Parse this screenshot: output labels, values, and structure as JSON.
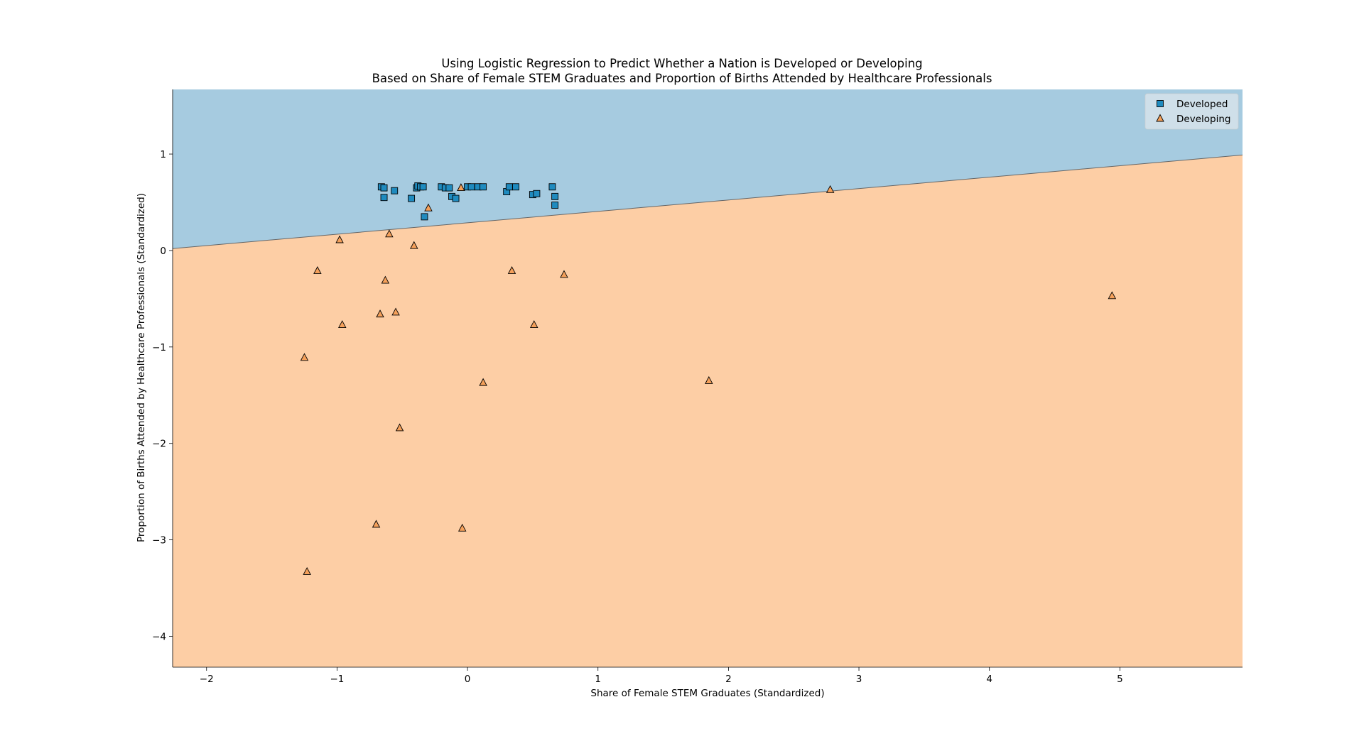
{
  "chart_data": {
    "type": "scatter",
    "title": "Using Logistic Regression to Predict Whether a Nation is Developed or Developing",
    "subtitle": "Based on Share of Female STEM Graduates and Proportion of Births Attended by Healthcare Professionals",
    "xlabel": "Share of Female STEM Graduates (Standardized)",
    "ylabel": "Proportion of Births Attended by Healthcare Professionals (Standardized)",
    "xlim": [
      -2.26,
      5.94
    ],
    "ylim": [
      -4.32,
      1.67
    ],
    "xticks": [
      -2,
      -1,
      0,
      1,
      2,
      3,
      4,
      5
    ],
    "yticks": [
      1,
      0,
      -1,
      -2,
      -3,
      -4
    ],
    "grid": false,
    "legend_position": "upper right",
    "decision_boundary": {
      "points": [
        [
          -2.26,
          0.02
        ],
        [
          5.94,
          0.99
        ]
      ],
      "above_class": "Developed",
      "below_class": "Developing"
    },
    "region_colors": {
      "Developed": "#a6cbe0",
      "Developing": "#fdcea5"
    },
    "series": [
      {
        "name": "Developed",
        "marker": "square",
        "color": "#1f8bbf",
        "points": [
          [
            -0.66,
            0.66
          ],
          [
            -0.64,
            0.65
          ],
          [
            -0.64,
            0.55
          ],
          [
            -0.56,
            0.62
          ],
          [
            -0.43,
            0.54
          ],
          [
            -0.39,
            0.65
          ],
          [
            -0.38,
            0.67
          ],
          [
            -0.36,
            0.66
          ],
          [
            -0.34,
            0.66
          ],
          [
            -0.33,
            0.35
          ],
          [
            -0.2,
            0.66
          ],
          [
            -0.17,
            0.65
          ],
          [
            -0.14,
            0.65
          ],
          [
            -0.12,
            0.56
          ],
          [
            -0.09,
            0.54
          ],
          [
            0.0,
            0.66
          ],
          [
            0.03,
            0.66
          ],
          [
            0.08,
            0.66
          ],
          [
            0.12,
            0.66
          ],
          [
            0.3,
            0.61
          ],
          [
            0.32,
            0.66
          ],
          [
            0.37,
            0.66
          ],
          [
            0.5,
            0.58
          ],
          [
            0.53,
            0.59
          ],
          [
            0.65,
            0.66
          ],
          [
            0.67,
            0.56
          ],
          [
            0.67,
            0.47
          ]
        ]
      },
      {
        "name": "Developing",
        "marker": "triangle",
        "color": "#f5a05a",
        "points": [
          [
            -0.05,
            0.65
          ],
          [
            -0.3,
            0.44
          ],
          [
            -0.98,
            0.11
          ],
          [
            -0.6,
            0.17
          ],
          [
            -0.41,
            0.05
          ],
          [
            -1.15,
            -0.21
          ],
          [
            -0.63,
            -0.31
          ],
          [
            0.34,
            -0.21
          ],
          [
            0.74,
            -0.25
          ],
          [
            -0.67,
            -0.66
          ],
          [
            -0.55,
            -0.64
          ],
          [
            -0.96,
            -0.77
          ],
          [
            0.51,
            -0.77
          ],
          [
            -1.25,
            -1.11
          ],
          [
            0.12,
            -1.37
          ],
          [
            1.85,
            -1.35
          ],
          [
            -0.52,
            -1.84
          ],
          [
            -0.7,
            -2.84
          ],
          [
            -0.04,
            -2.88
          ],
          [
            -1.23,
            -3.33
          ],
          [
            2.78,
            0.63
          ],
          [
            4.94,
            -0.47
          ]
        ]
      }
    ]
  }
}
